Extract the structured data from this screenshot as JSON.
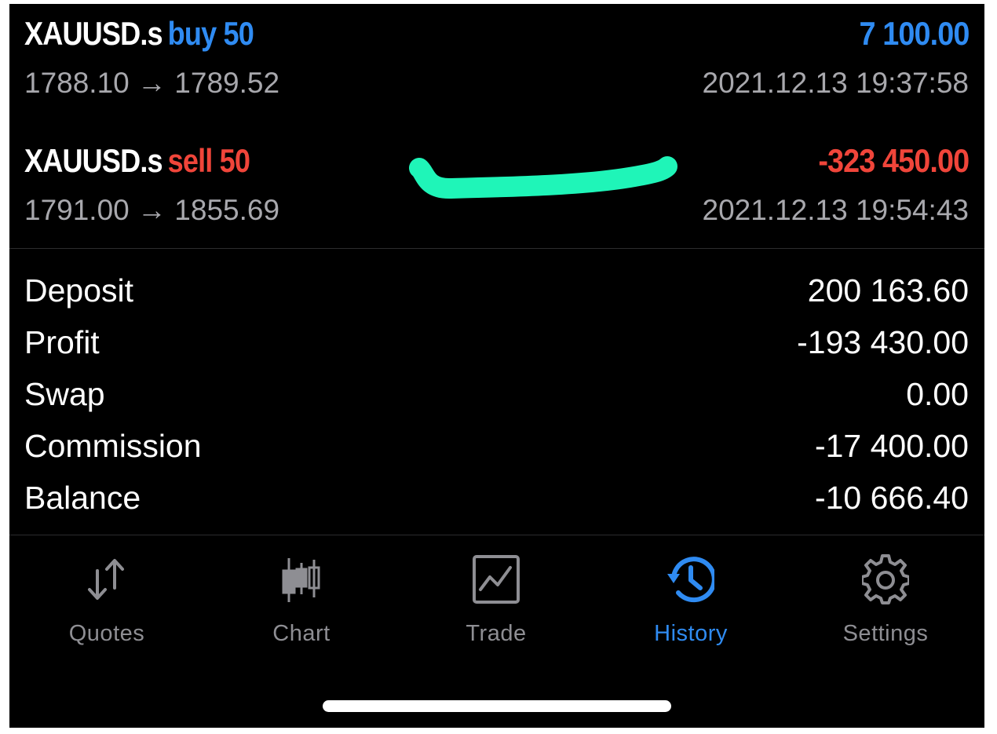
{
  "deals": [
    {
      "symbol": "XAUUSD.s",
      "type": "buy",
      "volume": "50",
      "type_volume": "buy 50",
      "prices": "1788.10 → 1789.52",
      "profit": "7 100.00",
      "time": "2021.12.13 19:37:58",
      "profit_color": "#2f8bf2"
    },
    {
      "symbol": "XAUUSD.s",
      "type": "sell",
      "volume": "50",
      "type_volume": "sell 50",
      "prices": "1791.00 → 1855.69",
      "profit": "-323 450.00",
      "time": "2021.12.13 19:54:43",
      "profit_color": "#f0453a"
    }
  ],
  "summary": {
    "deposit_label": "Deposit",
    "deposit_value": "200 163.60",
    "profit_label": "Profit",
    "profit_value": "-193 430.00",
    "swap_label": "Swap",
    "swap_value": "0.00",
    "commission_label": "Commission",
    "commission_value": "-17 400.00",
    "balance_label": "Balance",
    "balance_value": "-10 666.40"
  },
  "tabs": [
    {
      "label": "Quotes",
      "icon": "quotes-arrows-icon",
      "active": false
    },
    {
      "label": "Chart",
      "icon": "candlestick-icon",
      "active": false
    },
    {
      "label": "Trade",
      "icon": "trade-chart-icon",
      "active": false
    },
    {
      "label": "History",
      "icon": "history-clock-icon",
      "active": true
    },
    {
      "label": "Settings",
      "icon": "gear-icon",
      "active": false
    }
  ],
  "colors": {
    "background": "#000000",
    "accent_blue": "#2f8bf2",
    "loss_red": "#f0453a",
    "muted_text": "#a8a8ad",
    "tab_inactive": "#8e8e93",
    "scribble": "#1ff5b8"
  }
}
